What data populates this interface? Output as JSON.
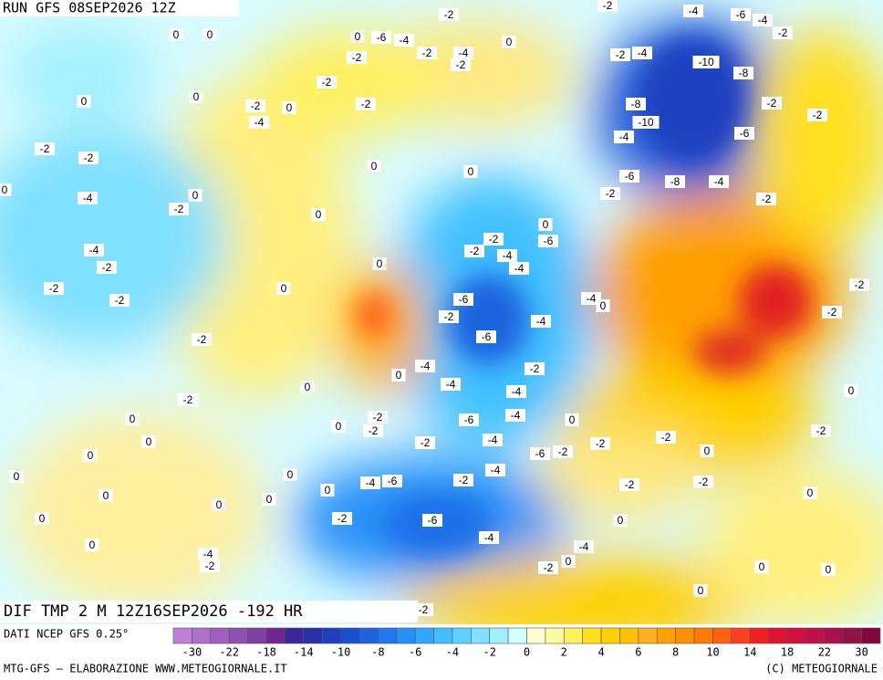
{
  "header": {
    "run": "RUN GFS 08SEP2026 12Z"
  },
  "footer": {
    "field": "DIF TMP 2 M 12Z16SEP2026 -192 HR",
    "source": "DATI NCEP GFS 0.25°",
    "credit": "MTG-GFS — ELABORAZIONE WWW.METEOGIORNALE.IT",
    "copyright": "(C) METEOGIORNALE"
  },
  "legend": {
    "colors": [
      "#c080d8",
      "#b070c8",
      "#a060c0",
      "#9050b0",
      "#8040a0",
      "#702890",
      "#3a2898",
      "#2a30a8",
      "#1f3fc0",
      "#1a50d0",
      "#1e64e0",
      "#2078f0",
      "#2890f8",
      "#30a8ff",
      "#40c0ff",
      "#60d0ff",
      "#80e0ff",
      "#a0f0ff",
      "#d0ffff",
      "#ffffd0",
      "#fffaa0",
      "#fff060",
      "#ffe020",
      "#ffd000",
      "#ffc000",
      "#ffb020",
      "#ffa000",
      "#ff9000",
      "#ff7a00",
      "#ff6010",
      "#ff4020",
      "#f02020",
      "#e01030",
      "#d01040",
      "#c01048",
      "#a81050",
      "#901048",
      "#800840"
    ],
    "ticks": [
      -30,
      -22,
      -18,
      -14,
      -10,
      -8,
      -6,
      -4,
      -2,
      0,
      2,
      4,
      6,
      8,
      10,
      14,
      18,
      22,
      30
    ]
  },
  "map_labels": [
    "-2",
    "-2",
    "-4",
    "-6",
    "-4",
    "-2",
    "0",
    "0",
    "0",
    "-6",
    "-4",
    "-2",
    "-4",
    "-2",
    "0",
    "-2",
    "-4",
    "-2",
    "-10",
    "-8",
    "-2",
    "0",
    "0",
    "-2",
    "0",
    "-4",
    "-2",
    "-8",
    "-2",
    "-2",
    "-10",
    "-4",
    "-6",
    "-2",
    "-2",
    "0",
    "0",
    "-6",
    "-8",
    "-4",
    "0",
    "-4",
    "-2",
    "0",
    "-2",
    "-2",
    "0",
    "0",
    "-2",
    "-6",
    "-2",
    "-4",
    "-4",
    "-2",
    "0",
    "-4",
    "0",
    "-2",
    "-2",
    "-6",
    "-4",
    "0",
    "-2",
    "-2",
    "-4",
    "-2",
    "-2",
    "-6",
    "-4",
    "-2",
    "0",
    "-4",
    "-2",
    "0",
    "-4",
    "0",
    "-2",
    "-6",
    "-4",
    "0",
    "0",
    "-2",
    "-2",
    "0",
    "0",
    "-2",
    "-4",
    "-2",
    "-2",
    "-6",
    "-2",
    "0",
    "0",
    "-4",
    "0",
    "0",
    "-4",
    "-6",
    "-2",
    "-2",
    "-2",
    "0",
    "0",
    "0",
    "0",
    "0",
    "-2",
    "-6",
    "0",
    "0",
    "-4",
    "0",
    "-4",
    "-4",
    "-2",
    "0",
    "-2",
    "0",
    "0",
    "0",
    "-2"
  ]
}
